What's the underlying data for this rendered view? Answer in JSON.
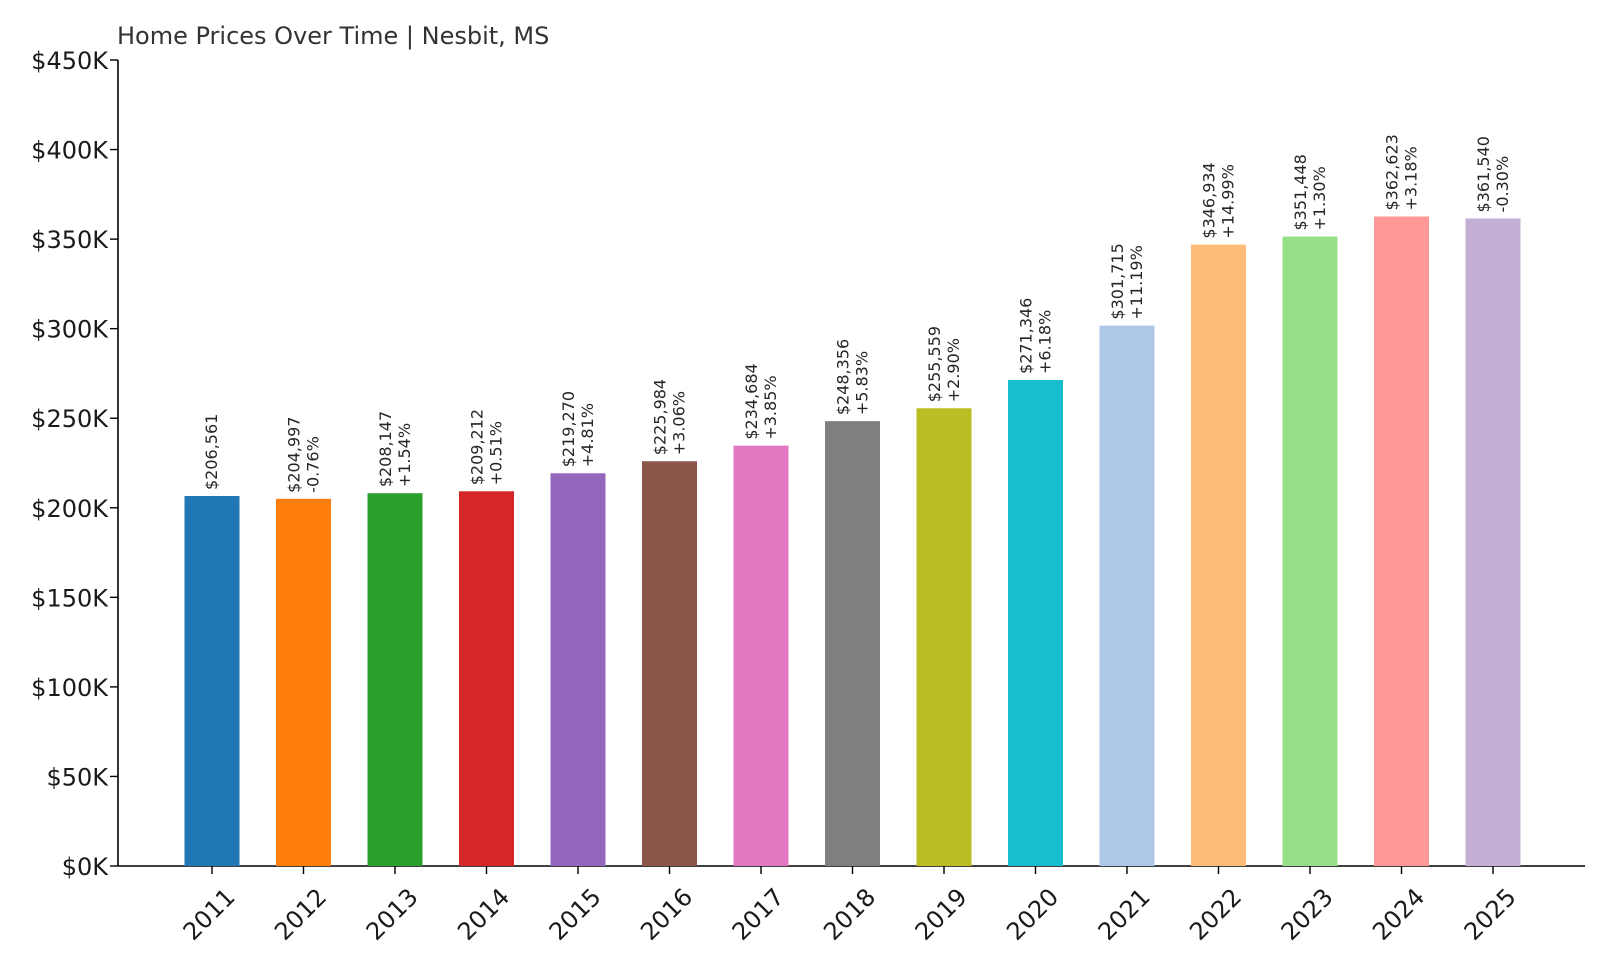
{
  "chart_data": {
    "type": "bar",
    "title": "Home Prices Over Time | Nesbit, MS",
    "xlabel": "",
    "ylabel": "",
    "ylim": [
      0,
      450000
    ],
    "y_ticks": [
      {
        "value": 0,
        "label": "$0K"
      },
      {
        "value": 50000,
        "label": "$50K"
      },
      {
        "value": 100000,
        "label": "$100K"
      },
      {
        "value": 150000,
        "label": "$150K"
      },
      {
        "value": 200000,
        "label": "$200K"
      },
      {
        "value": 250000,
        "label": "$250K"
      },
      {
        "value": 300000,
        "label": "$300K"
      },
      {
        "value": 350000,
        "label": "$350K"
      },
      {
        "value": 400000,
        "label": "$400K"
      },
      {
        "value": 450000,
        "label": "$450K"
      }
    ],
    "grid": false,
    "legend": "none",
    "bars": [
      {
        "category": "2011",
        "value": 206561,
        "value_label": "$206,561",
        "change_label": "",
        "color": "#1f77b4"
      },
      {
        "category": "2012",
        "value": 204997,
        "value_label": "$204,997",
        "change_label": "-0.76%",
        "color": "#ff7f0e"
      },
      {
        "category": "2013",
        "value": 208147,
        "value_label": "$208,147",
        "change_label": "+1.54%",
        "color": "#2ca02c"
      },
      {
        "category": "2014",
        "value": 209212,
        "value_label": "$209,212",
        "change_label": "+0.51%",
        "color": "#d62728"
      },
      {
        "category": "2015",
        "value": 219270,
        "value_label": "$219,270",
        "change_label": "+4.81%",
        "color": "#9467bd"
      },
      {
        "category": "2016",
        "value": 225984,
        "value_label": "$225,984",
        "change_label": "+3.06%",
        "color": "#8c564b"
      },
      {
        "category": "2017",
        "value": 234684,
        "value_label": "$234,684",
        "change_label": "+3.85%",
        "color": "#e377c2"
      },
      {
        "category": "2018",
        "value": 248356,
        "value_label": "$248,356",
        "change_label": "+5.83%",
        "color": "#7f7f7f"
      },
      {
        "category": "2019",
        "value": 255559,
        "value_label": "$255,559",
        "change_label": "+2.90%",
        "color": "#bcbd22"
      },
      {
        "category": "2020",
        "value": 271346,
        "value_label": "$271,346",
        "change_label": "+6.18%",
        "color": "#17becf"
      },
      {
        "category": "2021",
        "value": 301715,
        "value_label": "$301,715",
        "change_label": "+11.19%",
        "color": "#aec7e8"
      },
      {
        "category": "2022",
        "value": 346934,
        "value_label": "$346,934",
        "change_label": "+14.99%",
        "color": "#ffbb78"
      },
      {
        "category": "2023",
        "value": 351448,
        "value_label": "$351,448",
        "change_label": "+1.30%",
        "color": "#98df8a"
      },
      {
        "category": "2024",
        "value": 362623,
        "value_label": "$362,623",
        "change_label": "+3.18%",
        "color": "#ff9896"
      },
      {
        "category": "2025",
        "value": 361540,
        "value_label": "$361,540",
        "change_label": "-0.30%",
        "color": "#c5b0d5"
      }
    ]
  }
}
